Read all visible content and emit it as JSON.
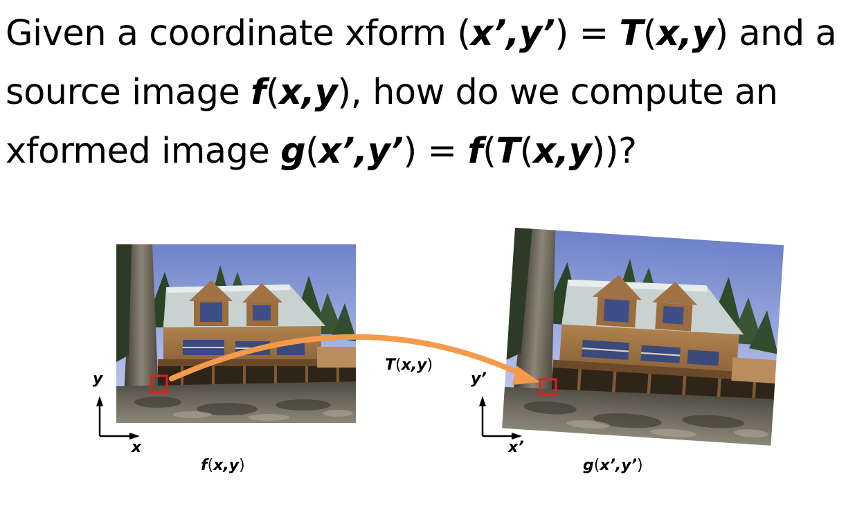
{
  "title": {
    "line1": {
      "p1": "Given a coordinate xform (",
      "v1": "x’,y’",
      "p2": ") = ",
      "v2": "T",
      "p3": "(",
      "v3": "x,y",
      "p4": ") and a"
    },
    "line2": {
      "p1": "source image ",
      "v1": "f",
      "p2": "(",
      "v2": "x,y",
      "p3": "), how do we compute an"
    },
    "line3": {
      "p1": "xformed image ",
      "v1": "g",
      "p2": "(",
      "v2": "x’,y’",
      "p3": ") = ",
      "v3": "f",
      "p4": "(",
      "v4": "T",
      "p5": "(",
      "v5": "x,y",
      "p6": "))?"
    }
  },
  "source": {
    "axis_y": "y",
    "axis_x": "x",
    "caption_fn": "f",
    "caption_open": "(",
    "caption_args": "x,y",
    "caption_close": ")"
  },
  "transform": {
    "fn": "T",
    "open": "(",
    "args": "x,y",
    "close": ")"
  },
  "target": {
    "axis_y": "y’",
    "axis_x": "x’",
    "caption_fn": "g",
    "caption_open": "(",
    "caption_args": "x’,y’",
    "caption_close": ")"
  },
  "colors": {
    "arrow": "#f39b4a",
    "marker": "#e02020",
    "axes": "#000000"
  }
}
